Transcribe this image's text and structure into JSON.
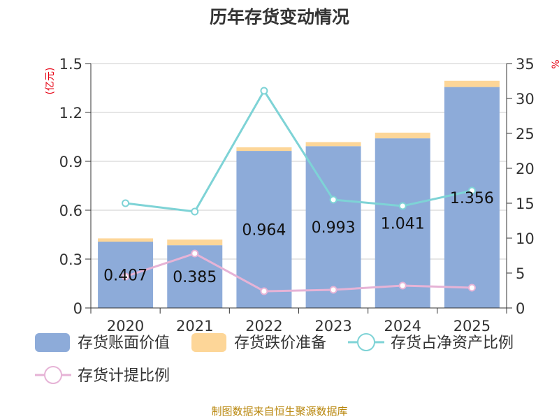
{
  "chart_data": {
    "type": "bar",
    "title": "历年存货变动情况",
    "categories": [
      "2020",
      "2021",
      "2022",
      "2023",
      "2024",
      "2025"
    ],
    "series": [
      {
        "name": "存货账面价值",
        "kind": "bar",
        "stack": "inv",
        "axis": "left",
        "color": "#8dabd9",
        "values": [
          0.407,
          0.385,
          0.964,
          0.993,
          1.041,
          1.356
        ],
        "labels_shown": true
      },
      {
        "name": "存货跌价准备",
        "kind": "bar",
        "stack": "inv",
        "axis": "left",
        "color": "#fdd698",
        "values": [
          0.02,
          0.035,
          0.022,
          0.025,
          0.035,
          0.038
        ]
      },
      {
        "name": "存货占净资产比例",
        "kind": "line",
        "axis": "right",
        "color": "#7ed3d6",
        "values": [
          15.0,
          13.8,
          31.1,
          15.5,
          14.6,
          16.8
        ]
      },
      {
        "name": "存货计提比例",
        "kind": "line",
        "axis": "right",
        "color": "#e6b3d6",
        "values": [
          4.5,
          7.8,
          2.4,
          2.6,
          3.2,
          2.9
        ]
      }
    ],
    "y_left": {
      "unit": "(亿元)",
      "ticks": [
        "0",
        "0.3",
        "0.6",
        "0.9",
        "1.2",
        "1.5"
      ],
      "range": [
        0,
        1.5
      ]
    },
    "y_right": {
      "unit": "%",
      "ticks": [
        "0",
        "5",
        "10",
        "15",
        "20",
        "25",
        "30",
        "35"
      ],
      "range": [
        0,
        35
      ]
    },
    "grid": true,
    "legend_position": "bottom",
    "source": "制图数据来自恒生聚源数据库"
  }
}
